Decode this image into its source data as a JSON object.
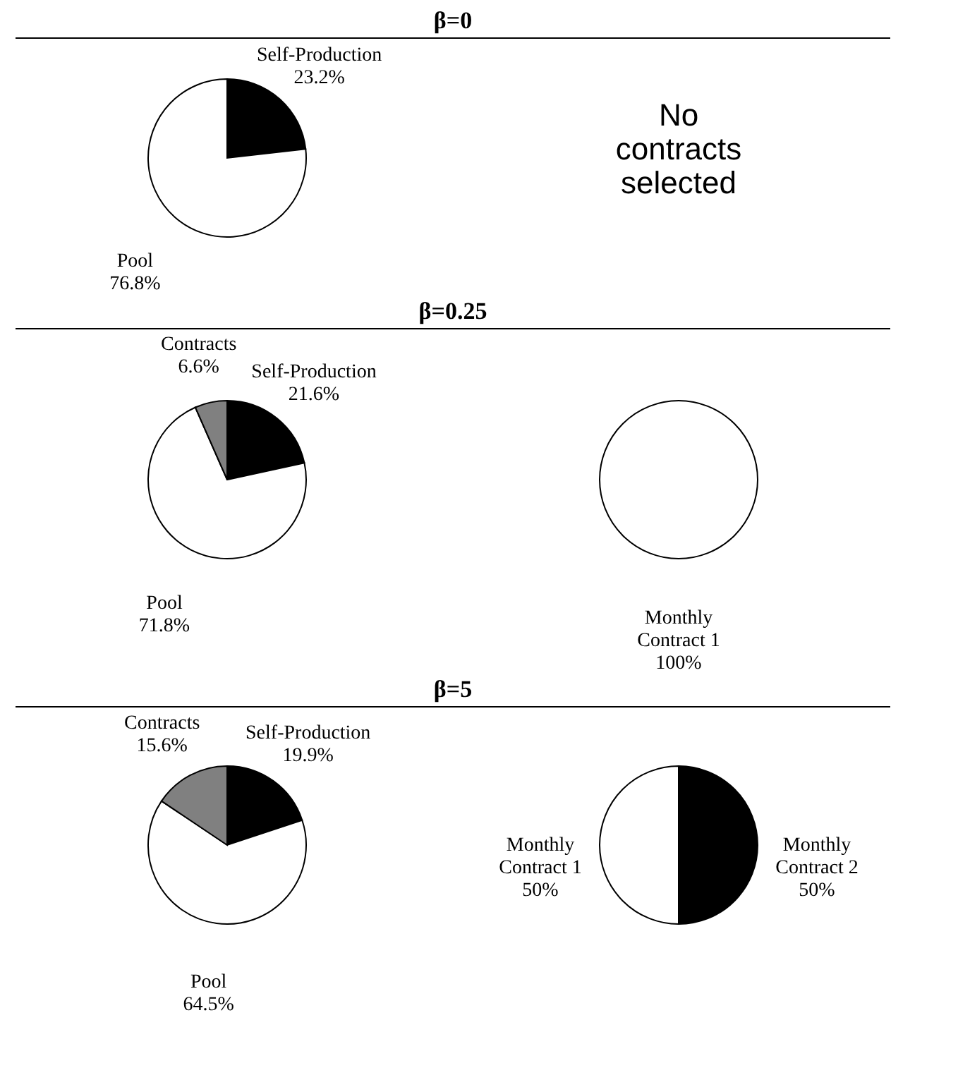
{
  "chart_data": [
    {
      "type": "pie",
      "title": "β=0",
      "categories": [
        "Self-Production",
        "Pool"
      ],
      "values": [
        23.2,
        76.8
      ],
      "colors": [
        "#000000",
        "#ffffff"
      ],
      "value_labels": [
        "23.2%",
        "76.8%"
      ]
    },
    {
      "type": "other",
      "annotations": [
        "No contracts selected"
      ]
    },
    {
      "type": "pie",
      "title": "β=0.25",
      "categories": [
        "Self-Production",
        "Pool",
        "Contracts"
      ],
      "values": [
        21.6,
        71.8,
        6.6
      ],
      "colors": [
        "#000000",
        "#ffffff",
        "#808080"
      ],
      "value_labels": [
        "21.6%",
        "71.8%",
        "6.6%"
      ]
    },
    {
      "type": "pie",
      "categories": [
        "Monthly Contract 1"
      ],
      "values": [
        100
      ],
      "colors": [
        "#ffffff"
      ],
      "value_labels": [
        "100%"
      ]
    },
    {
      "type": "pie",
      "title": "β=5",
      "categories": [
        "Self-Production",
        "Pool",
        "Contracts"
      ],
      "values": [
        19.9,
        64.5,
        15.6
      ],
      "colors": [
        "#000000",
        "#ffffff",
        "#808080"
      ],
      "value_labels": [
        "19.9%",
        "64.5%",
        "15.6%"
      ]
    },
    {
      "type": "pie",
      "categories": [
        "Monthly Contract 2",
        "Monthly Contract 1"
      ],
      "values": [
        50,
        50
      ],
      "colors": [
        "#000000",
        "#ffffff"
      ],
      "value_labels": [
        "50%",
        "50%"
      ]
    }
  ]
}
